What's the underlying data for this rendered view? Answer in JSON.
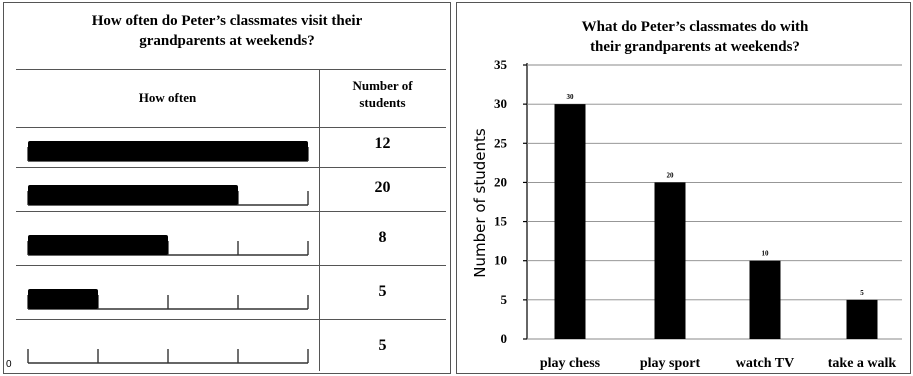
{
  "table": {
    "title_line1": "How often do Peter’s classmates visit their",
    "title_line2": "grandparents at weekends?",
    "col_how_often": "How often",
    "col_count_line1": "Number of",
    "col_count_line2": "students",
    "scale_zero_label": "0",
    "segments_total": 4,
    "rows": [
      {
        "filled_segments": 4,
        "students": "12"
      },
      {
        "filled_segments": 3,
        "students": "20"
      },
      {
        "filled_segments": 2,
        "students": "8"
      },
      {
        "filled_segments": 1,
        "students": "5"
      },
      {
        "filled_segments": 0,
        "students": "5"
      }
    ]
  },
  "chart_data": {
    "type": "bar",
    "title_line1": "What do Peter’s classmates do with",
    "title_line2": "their grandparents at weekends?",
    "ylabel": "Number of students",
    "xlabel": "",
    "categories": [
      "play chess",
      "play sport",
      "watch TV",
      "take a walk"
    ],
    "values": [
      30,
      20,
      10,
      5
    ],
    "data_labels": [
      "30",
      "20",
      "10",
      "5"
    ],
    "ylim": [
      0,
      35
    ],
    "yticks": [
      0,
      5,
      10,
      15,
      20,
      25,
      30,
      35
    ],
    "bar_color": "#000000",
    "grid": false
  }
}
